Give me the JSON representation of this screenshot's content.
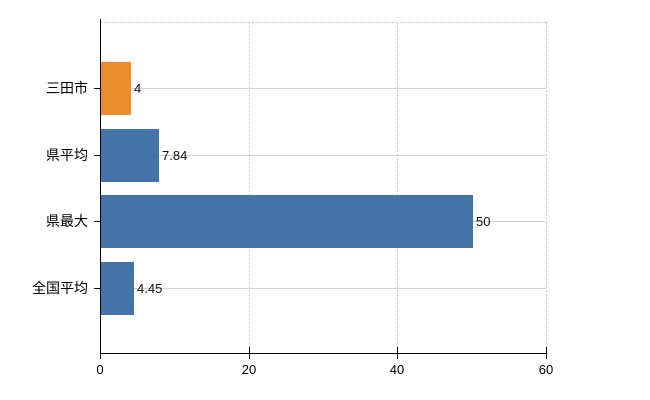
{
  "chart_data": {
    "type": "bar",
    "orientation": "horizontal",
    "categories": [
      "三田市",
      "県平均",
      "県最大",
      "全国平均"
    ],
    "values": [
      4,
      7.84,
      50,
      4.45
    ],
    "value_labels": [
      "4",
      "7.84",
      "50",
      "4.45"
    ],
    "bar_colors": [
      "#ED8C2F",
      "#4473A8",
      "#4473A8",
      "#4473A8"
    ],
    "xlim": [
      0,
      60
    ],
    "x_ticks": [
      0,
      20,
      40,
      60
    ],
    "x_tick_labels": [
      "0",
      "20",
      "40",
      "60"
    ],
    "grid": true,
    "legend_position": "none"
  },
  "colors": {
    "background": "#ffffff",
    "axis": "#000000",
    "text": "#000000",
    "h_gridline": "#ccd5cc",
    "v_gridline_dashed": "#c9c9c9",
    "bar_blue": "#4473A8",
    "bar_orange": "#ED8C2F"
  }
}
